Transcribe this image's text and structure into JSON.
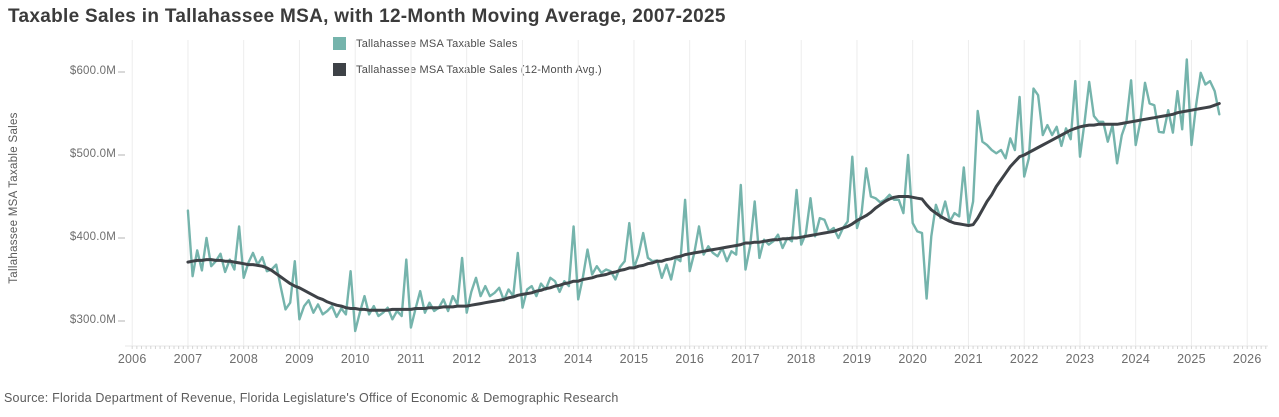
{
  "page": {
    "title": "Taxable Sales in Tallahassee MSA, with 12-Month Moving Average, 2007-2025",
    "source": "Source: Florida Department of Revenue, Florida Legislature's Office of Economic & Demographic Research"
  },
  "legend": {
    "items": [
      {
        "label": "Tallahassee MSA Taxable Sales",
        "color": "#75b4ac"
      },
      {
        "label": "Tallahassee MSA Taxable Sales (12-Month Avg.)",
        "color": "#3e4247"
      }
    ]
  },
  "y_axis": {
    "title": "Tallahassee MSA Taxable Sales",
    "tick_labels": [
      "$600.0M",
      "$500.0M",
      "$400.0M",
      "$300.0M"
    ],
    "tick_values": [
      600,
      500,
      400,
      300
    ]
  },
  "x_axis": {
    "tick_labels": [
      "2006",
      "2007",
      "2008",
      "2009",
      "2010",
      "2011",
      "2012",
      "2013",
      "2014",
      "2015",
      "2016",
      "2017",
      "2018",
      "2019",
      "2020",
      "2021",
      "2022",
      "2023",
      "2024",
      "2025",
      "2026"
    ],
    "tick_values": [
      2006,
      2007,
      2008,
      2009,
      2010,
      2011,
      2012,
      2013,
      2014,
      2015,
      2016,
      2017,
      2018,
      2019,
      2020,
      2021,
      2022,
      2023,
      2024,
      2025,
      2026
    ]
  },
  "chart_data": {
    "type": "line",
    "title": "Taxable Sales in Tallahassee MSA, with 12-Month Moving Average, 2007-2025",
    "xlabel": "",
    "ylabel": "Tallahassee MSA Taxable Sales",
    "units": "USD millions",
    "x_start": "2007-01",
    "x_frequency": "monthly",
    "x_axis_range_years": [
      2005.9,
      2026.4
    ],
    "ylim": [
      270,
      640
    ],
    "grid": "vertical-year-gridlines",
    "legend_position": "top-inside",
    "series": [
      {
        "name": "Tallahassee MSA Taxable Sales",
        "color": "#75b4ac",
        "line_width": 2.4,
        "values": [
          433,
          354,
          385,
          361,
          400,
          366,
          372,
          381,
          359,
          374,
          362,
          414,
          352,
          370,
          382,
          368,
          377,
          360,
          362,
          368,
          340,
          314,
          322,
          372,
          302,
          318,
          325,
          310,
          320,
          308,
          312,
          318,
          305,
          315,
          308,
          360,
          288,
          310,
          330,
          308,
          318,
          306,
          310,
          316,
          302,
          312,
          306,
          374,
          292,
          315,
          336,
          310,
          322,
          312,
          316,
          326,
          312,
          330,
          320,
          376,
          310,
          335,
          352,
          330,
          342,
          330,
          334,
          340,
          325,
          338,
          330,
          382,
          316,
          338,
          342,
          330,
          345,
          338,
          352,
          348,
          335,
          348,
          342,
          414,
          326,
          352,
          386,
          356,
          366,
          358,
          362,
          360,
          350,
          365,
          372,
          418,
          364,
          380,
          406,
          376,
          372,
          373,
          352,
          368,
          350,
          376,
          372,
          446,
          360,
          382,
          414,
          380,
          390,
          382,
          378,
          388,
          372,
          384,
          380,
          464,
          362,
          390,
          444,
          376,
          398,
          392,
          396,
          404,
          388,
          400,
          396,
          458,
          392,
          405,
          448,
          402,
          424,
          422,
          408,
          412,
          400,
          412,
          420,
          498,
          412,
          430,
          484,
          450,
          448,
          443,
          446,
          452,
          446,
          446,
          430,
          500,
          418,
          408,
          406,
          327,
          402,
          440,
          424,
          444,
          420,
          430,
          426,
          485,
          418,
          444,
          553,
          516,
          512,
          506,
          502,
          506,
          496,
          520,
          506,
          570,
          474,
          496,
          580,
          572,
          524,
          536,
          524,
          534,
          511,
          532,
          519,
          589,
          498,
          540,
          588,
          547,
          540,
          540,
          516,
          536,
          490,
          524,
          540,
          590,
          512,
          540,
          587,
          562,
          560,
          528,
          527,
          554,
          527,
          577,
          531,
          615,
          512,
          560,
          599,
          585,
          589,
          577,
          549
        ]
      },
      {
        "name": "Tallahassee MSA Taxable Sales (12-Month Avg.)",
        "color": "#3e4247",
        "line_width": 3,
        "values": [
          371,
          372,
          373,
          373,
          374,
          374,
          373,
          373,
          372,
          372,
          371,
          370,
          369,
          368,
          368,
          367,
          366,
          364,
          361,
          357,
          353,
          349,
          345,
          342,
          340,
          337,
          334,
          331,
          328,
          326,
          323,
          321,
          319,
          318,
          316,
          315,
          315,
          314,
          314,
          313,
          313,
          313,
          313,
          313,
          314,
          314,
          314,
          314,
          314,
          315,
          315,
          315,
          316,
          316,
          316,
          317,
          317,
          317,
          318,
          318,
          318,
          319,
          320,
          321,
          322,
          323,
          324,
          325,
          326,
          328,
          329,
          331,
          332,
          333,
          334,
          336,
          337,
          339,
          340,
          342,
          343,
          345,
          346,
          348,
          348,
          350,
          351,
          352,
          354,
          355,
          356,
          358,
          359,
          361,
          362,
          364,
          364,
          366,
          367,
          369,
          370,
          372,
          372,
          374,
          375,
          377,
          378,
          380,
          381,
          382,
          383,
          384,
          385,
          386,
          387,
          388,
          389,
          390,
          391,
          392,
          394,
          394,
          395,
          395,
          396,
          397,
          398,
          398,
          399,
          399,
          400,
          400,
          401,
          402,
          403,
          404,
          405,
          406,
          407,
          408,
          410,
          412,
          414,
          417,
          421,
          424,
          427,
          431,
          436,
          440,
          444,
          447,
          449,
          450,
          450,
          450,
          449,
          448,
          447,
          440,
          434,
          430,
          426,
          423,
          420,
          418,
          417,
          416,
          415,
          416,
          424,
          434,
          444,
          452,
          462,
          470,
          478,
          486,
          492,
          498,
          500,
          503,
          506,
          509,
          512,
          515,
          518,
          521,
          524,
          527,
          530,
          532,
          534,
          535,
          536,
          536,
          537,
          537,
          537,
          537,
          537,
          538,
          539,
          540,
          541,
          542,
          543,
          544,
          545,
          546,
          547,
          548,
          549,
          551,
          552,
          553,
          554,
          555,
          556,
          557,
          558,
          560,
          562
        ]
      }
    ]
  }
}
